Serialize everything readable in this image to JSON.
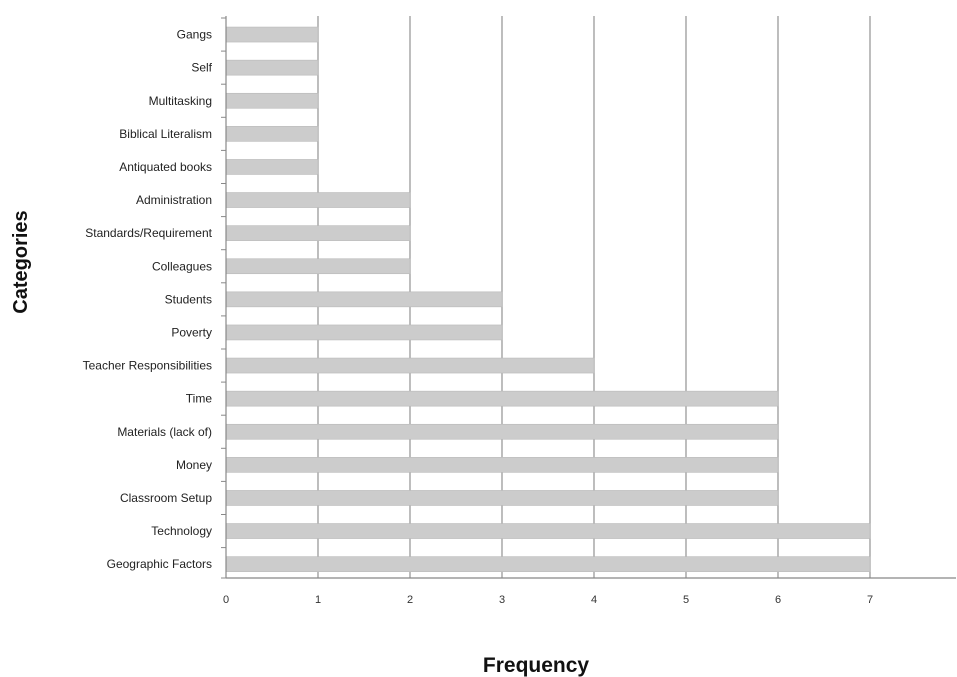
{
  "chart_data": {
    "type": "bar",
    "orientation": "horizontal",
    "categories": [
      "Gangs",
      "Self",
      "Multitasking",
      "Biblical Literalism",
      "Antiquated books",
      "Administration",
      "Standards/Requirement",
      "Colleagues",
      "Students",
      "Poverty",
      "Teacher Responsibilities",
      "Time",
      "Materials (lack of)",
      "Money",
      "Classroom Setup",
      "Technology",
      "Geographic Factors"
    ],
    "values": [
      1,
      1,
      1,
      1,
      1,
      2,
      2,
      2,
      3,
      3,
      4,
      6,
      6,
      6,
      6,
      7,
      7
    ],
    "xlabel": "Frequency",
    "ylabel": "Categories",
    "xticks": [
      "0",
      "1",
      "2",
      "3",
      "4",
      "5",
      "6",
      "7"
    ],
    "xlim": [
      0,
      7.9
    ],
    "grid": "vertical",
    "legend": "none",
    "colors": {
      "bar_fill": "#cccccc",
      "bar_stroke": "#b8b8b8",
      "grid": "#9a9a9a",
      "axis": "#888888"
    }
  }
}
